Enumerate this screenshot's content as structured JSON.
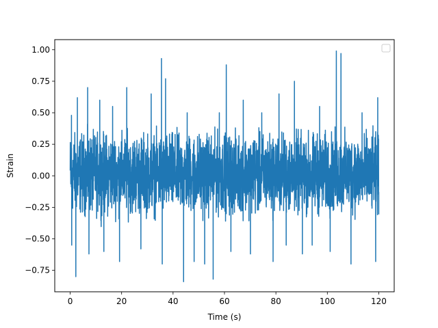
{
  "chart_data": {
    "type": "line",
    "title": "",
    "xlabel": "Time (s)",
    "ylabel": "Strain",
    "xlim": [
      -6,
      126
    ],
    "ylim": [
      -0.92,
      1.08
    ],
    "x_ticks": [
      {
        "value": 0,
        "label": "0"
      },
      {
        "value": 20,
        "label": "20"
      },
      {
        "value": 40,
        "label": "40"
      },
      {
        "value": 60,
        "label": "60"
      },
      {
        "value": 80,
        "label": "80"
      },
      {
        "value": 100,
        "label": "100"
      },
      {
        "value": 120,
        "label": "120"
      }
    ],
    "y_ticks": [
      {
        "value": -0.75,
        "label": "−0.75"
      },
      {
        "value": -0.5,
        "label": "−0.50"
      },
      {
        "value": -0.25,
        "label": "−0.25"
      },
      {
        "value": 0,
        "label": "0.00"
      },
      {
        "value": 0.25,
        "label": "0.25"
      },
      {
        "value": 0.5,
        "label": "0.50"
      },
      {
        "value": 0.75,
        "label": "0.75"
      },
      {
        "value": 1,
        "label": "1.00"
      }
    ],
    "grid": false,
    "legend": {
      "location": "upper right",
      "entries": []
    },
    "series": [
      {
        "color": "#1f77b4",
        "x_range": [
          0,
          120
        ],
        "dense_band": [
          -0.3,
          0.33
        ],
        "peaks": [
          {
            "x": 0.5,
            "y": 0.48
          },
          {
            "x": 0.6,
            "y": -0.55
          },
          {
            "x": 2.2,
            "y": -0.8
          },
          {
            "x": 2.8,
            "y": 0.62
          },
          {
            "x": 6.8,
            "y": 0.7
          },
          {
            "x": 7.3,
            "y": -0.62
          },
          {
            "x": 11.5,
            "y": 0.6
          },
          {
            "x": 13.1,
            "y": -0.6
          },
          {
            "x": 16.5,
            "y": 0.55
          },
          {
            "x": 19.2,
            "y": -0.68
          },
          {
            "x": 22.0,
            "y": 0.7
          },
          {
            "x": 27.5,
            "y": -0.58
          },
          {
            "x": 31.5,
            "y": 0.65
          },
          {
            "x": 35.5,
            "y": 0.93
          },
          {
            "x": 35.8,
            "y": -0.7
          },
          {
            "x": 37.1,
            "y": 0.77
          },
          {
            "x": 44.1,
            "y": -0.84
          },
          {
            "x": 45.5,
            "y": 0.5
          },
          {
            "x": 48.2,
            "y": -0.68
          },
          {
            "x": 52.3,
            "y": -0.7
          },
          {
            "x": 55.6,
            "y": -0.82
          },
          {
            "x": 58.0,
            "y": 0.5
          },
          {
            "x": 60.7,
            "y": 0.88
          },
          {
            "x": 62.5,
            "y": -0.6
          },
          {
            "x": 67.3,
            "y": 0.6
          },
          {
            "x": 70.1,
            "y": -0.62
          },
          {
            "x": 74.5,
            "y": 0.5
          },
          {
            "x": 78.9,
            "y": -0.68
          },
          {
            "x": 81.2,
            "y": 0.65
          },
          {
            "x": 84.0,
            "y": -0.55
          },
          {
            "x": 87.2,
            "y": 0.75
          },
          {
            "x": 90.3,
            "y": -0.62
          },
          {
            "x": 94.1,
            "y": -0.55
          },
          {
            "x": 97.0,
            "y": 0.55
          },
          {
            "x": 101.1,
            "y": -0.6
          },
          {
            "x": 103.5,
            "y": 0.99
          },
          {
            "x": 105.3,
            "y": 0.97
          },
          {
            "x": 109.2,
            "y": -0.7
          },
          {
            "x": 113.5,
            "y": 0.5
          },
          {
            "x": 118.8,
            "y": -0.68
          },
          {
            "x": 119.6,
            "y": 0.62
          },
          {
            "x": 120.0,
            "y": -0.13
          }
        ]
      }
    ]
  }
}
